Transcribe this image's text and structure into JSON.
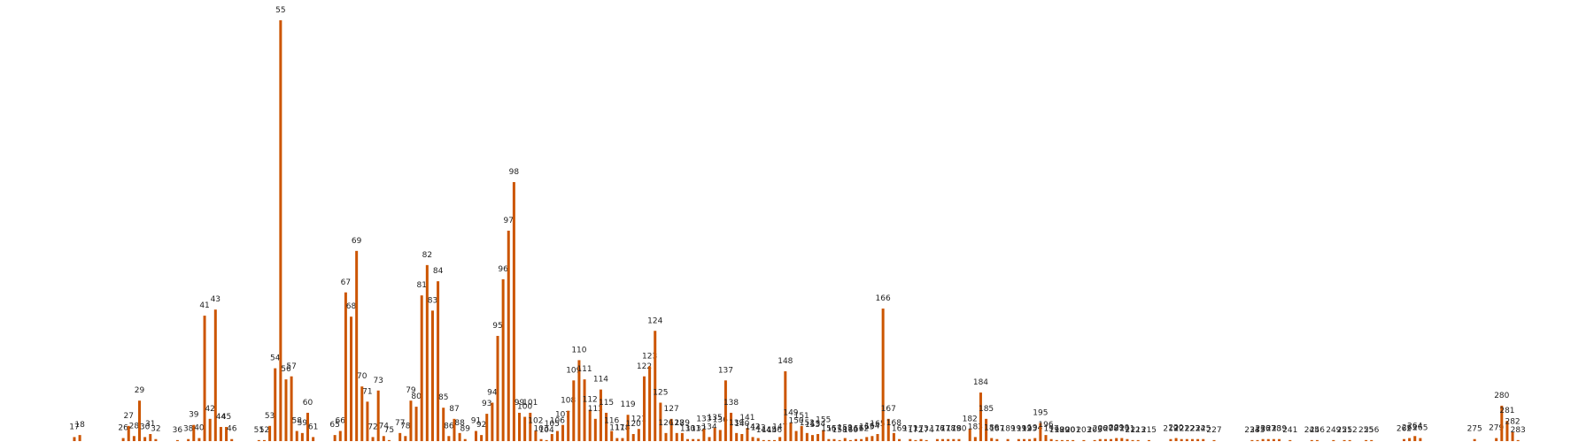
{
  "chart_data": {
    "type": "bar",
    "color": "#cc5500",
    "x": [
      17,
      18,
      26,
      27,
      28,
      29,
      30,
      31,
      32,
      36,
      38,
      39,
      40,
      41,
      42,
      43,
      44,
      45,
      46,
      51,
      52,
      53,
      54,
      55,
      56,
      57,
      58,
      59,
      60,
      61,
      65,
      66,
      67,
      68,
      69,
      70,
      71,
      72,
      73,
      74,
      75,
      77,
      78,
      79,
      80,
      81,
      82,
      83,
      84,
      85,
      86,
      87,
      88,
      89,
      91,
      92,
      93,
      94,
      95,
      96,
      97,
      98,
      99,
      100,
      101,
      102,
      103,
      104,
      105,
      106,
      107,
      108,
      109,
      110,
      111,
      112,
      113,
      114,
      115,
      116,
      117,
      118,
      119,
      120,
      121,
      122,
      123,
      124,
      125,
      126,
      127,
      128,
      129,
      130,
      131,
      132,
      133,
      134,
      135,
      136,
      137,
      138,
      139,
      140,
      141,
      142,
      143,
      144,
      145,
      146,
      147,
      148,
      149,
      150,
      151,
      152,
      153,
      154,
      155,
      156,
      157,
      158,
      159,
      160,
      161,
      162,
      163,
      164,
      165,
      166,
      167,
      168,
      169,
      171,
      172,
      173,
      174,
      176,
      177,
      178,
      179,
      180,
      182,
      183,
      184,
      185,
      186,
      187,
      189,
      191,
      192,
      193,
      194,
      195,
      196,
      197,
      198,
      199,
      200,
      201,
      203,
      205,
      206,
      207,
      208,
      209,
      210,
      211,
      212,
      213,
      215,
      219,
      220,
      221,
      222,
      223,
      224,
      225,
      227,
      234,
      235,
      236,
      237,
      238,
      239,
      241,
      245,
      246,
      249,
      251,
      252,
      255,
      256,
      262,
      263,
      264,
      265,
      275,
      279,
      280,
      281,
      282,
      283
    ],
    "values": [
      4,
      6,
      3,
      15,
      5,
      40,
      4,
      7,
      2,
      1,
      2,
      16,
      3,
      124,
      22,
      130,
      14,
      14,
      2,
      1,
      1,
      15,
      72,
      416,
      61,
      64,
      10,
      8,
      28,
      4,
      6,
      10,
      147,
      123,
      188,
      54,
      39,
      4,
      50,
      5,
      1,
      8,
      5,
      40,
      34,
      144,
      174,
      129,
      158,
      33,
      5,
      22,
      8,
      2,
      10,
      6,
      27,
      38,
      104,
      160,
      208,
      256,
      28,
      24,
      28,
      10,
      2,
      1,
      7,
      10,
      16,
      30,
      60,
      80,
      61,
      31,
      22,
      51,
      28,
      10,
      3,
      3,
      26,
      7,
      12,
      64,
      74,
      109,
      38,
      8,
      22,
      8,
      8,
      2,
      2,
      2,
      12,
      4,
      13,
      11,
      60,
      28,
      8,
      7,
      13,
      4,
      3,
      1,
      1,
      1,
      4,
      69,
      18,
      10,
      15,
      8,
      6,
      7,
      11,
      2,
      2,
      1,
      3,
      1,
      2,
      2,
      4,
      5,
      7,
      131,
      22,
      8,
      2,
      2,
      1,
      2,
      1,
      2,
      2,
      2,
      2,
      2,
      12,
      4,
      48,
      22,
      3,
      2,
      2,
      2,
      2,
      2,
      3,
      18,
      6,
      2,
      1,
      1,
      1,
      1,
      1,
      1,
      2,
      2,
      2,
      3,
      3,
      2,
      1,
      1,
      1,
      2,
      3,
      2,
      2,
      2,
      2,
      2,
      1,
      1,
      1,
      2,
      2,
      2,
      2,
      1,
      1,
      1,
      1,
      1,
      1,
      1,
      1,
      2,
      3,
      5,
      3,
      2,
      3,
      35,
      20,
      9,
      1
    ],
    "xlim": [
      3.3,
      297
    ],
    "ylim": [
      0,
      436
    ]
  }
}
